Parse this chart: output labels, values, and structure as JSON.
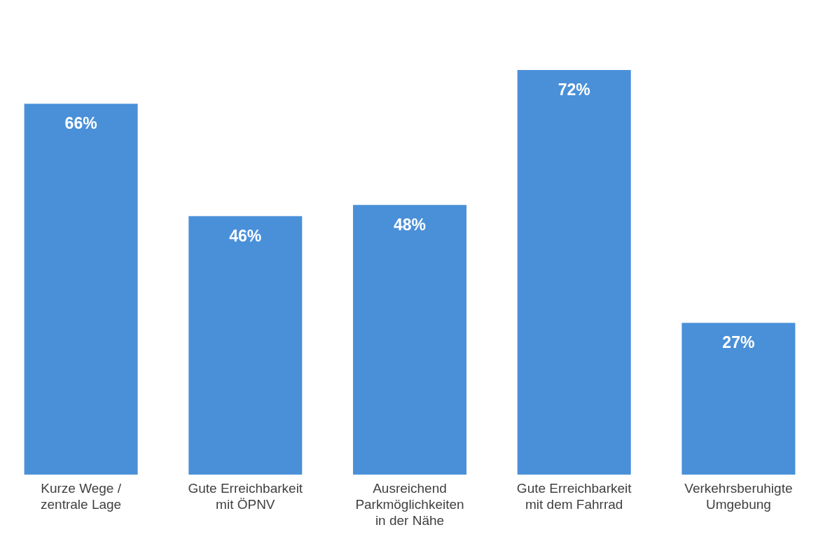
{
  "chart_data": {
    "type": "bar",
    "categories": [
      "Kurze Wege / zentrale Lage",
      "Gute Erreichbarkeit mit ÖPNV",
      "Ausreichend Parkmöglichkeiten in der Nähe",
      "Gute Erreichbarkeit mit dem Fahrrad",
      "Verkehrsberuhigte Umgebung"
    ],
    "values": [
      66,
      46,
      48,
      72,
      27
    ],
    "value_labels": [
      "66%",
      "46%",
      "48%",
      "72%",
      "27%"
    ],
    "color": "#4a90d9"
  }
}
